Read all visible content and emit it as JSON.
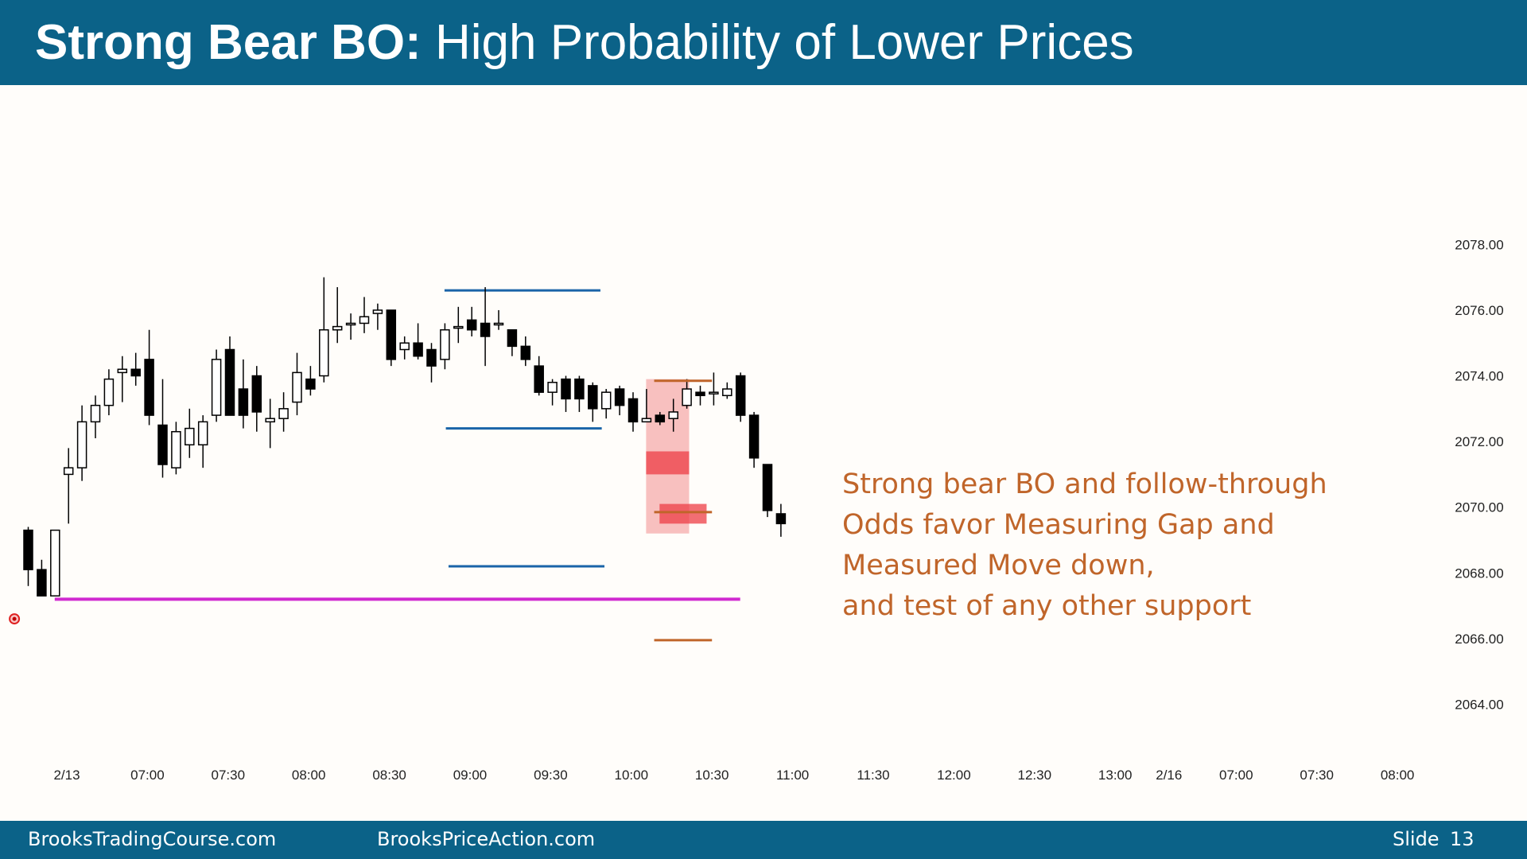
{
  "header": {
    "title_bold": "Strong Bear BO:",
    "title_rest": "High Probability of Lower Prices"
  },
  "footer": {
    "site1": "BrooksTradingCourse.com",
    "site2": "BrooksPriceAction.com",
    "slide_label": "Slide",
    "slide_number": "13"
  },
  "annotation": {
    "lines": [
      "Strong bear BO and follow-through",
      "Odds favor Measuring Gap and",
      "Measured Move down,",
      "and test of any other support"
    ],
    "color": "#c0652a"
  },
  "chart_data": {
    "type": "candlestick",
    "title": "",
    "xlabel": "",
    "ylabel": "",
    "ylim": [
      2062.8,
      2080.6
    ],
    "y_ticks": [
      "2078.00",
      "2076.00",
      "2074.00",
      "2072.00",
      "2070.00",
      "2068.00",
      "2066.00",
      "2064.00"
    ],
    "x_ticks": [
      {
        "label": "2/13",
        "slot": 0
      },
      {
        "label": "07:00",
        "slot": 6
      },
      {
        "label": "07:30",
        "slot": 12
      },
      {
        "label": "08:00",
        "slot": 18
      },
      {
        "label": "08:30",
        "slot": 24
      },
      {
        "label": "09:00",
        "slot": 30
      },
      {
        "label": "09:30",
        "slot": 36
      },
      {
        "label": "10:00",
        "slot": 42
      },
      {
        "label": "10:30",
        "slot": 48
      },
      {
        "label": "11:00",
        "slot": 54
      },
      {
        "label": "11:30",
        "slot": 60
      },
      {
        "label": "12:00",
        "slot": 66
      },
      {
        "label": "12:30",
        "slot": 72
      },
      {
        "label": "13:00",
        "slot": 78
      },
      {
        "label": "2/16",
        "slot": 82
      },
      {
        "label": "07:00",
        "slot": 87
      },
      {
        "label": "07:30",
        "slot": 93
      },
      {
        "label": "08:00",
        "slot": 99
      }
    ],
    "candles": [
      [
        2069.3,
        2069.4,
        2067.6,
        2068.1
      ],
      [
        2068.1,
        2068.4,
        2067.3,
        2067.3
      ],
      [
        2067.3,
        2069.3,
        2067.3,
        2069.3
      ],
      [
        2071.0,
        2071.8,
        2069.5,
        2071.2
      ],
      [
        2071.2,
        2073.1,
        2070.8,
        2072.6
      ],
      [
        2072.6,
        2073.4,
        2072.1,
        2073.1
      ],
      [
        2073.1,
        2074.2,
        2072.8,
        2073.9
      ],
      [
        2074.1,
        2074.6,
        2073.2,
        2074.2
      ],
      [
        2074.2,
        2074.7,
        2073.7,
        2074.0
      ],
      [
        2074.5,
        2075.4,
        2072.5,
        2072.8
      ],
      [
        2072.5,
        2073.9,
        2070.9,
        2071.3
      ],
      [
        2071.2,
        2072.6,
        2071.0,
        2072.3
      ],
      [
        2071.9,
        2073.0,
        2071.5,
        2072.4
      ],
      [
        2071.9,
        2072.8,
        2071.2,
        2072.6
      ],
      [
        2072.8,
        2074.8,
        2072.6,
        2074.5
      ],
      [
        2074.8,
        2075.2,
        2072.8,
        2072.8
      ],
      [
        2073.6,
        2074.5,
        2072.4,
        2072.8
      ],
      [
        2074.0,
        2074.3,
        2072.3,
        2072.9
      ],
      [
        2072.6,
        2073.3,
        2071.8,
        2072.7
      ],
      [
        2072.7,
        2073.5,
        2072.3,
        2073.0
      ],
      [
        2073.2,
        2074.7,
        2072.8,
        2074.1
      ],
      [
        2073.9,
        2074.3,
        2073.4,
        2073.6
      ],
      [
        2074.0,
        2077.0,
        2073.8,
        2075.4
      ],
      [
        2075.4,
        2076.7,
        2075.0,
        2075.5
      ],
      [
        2075.6,
        2075.9,
        2075.1,
        2075.6
      ],
      [
        2075.6,
        2076.4,
        2075.3,
        2075.8
      ],
      [
        2075.9,
        2076.2,
        2075.4,
        2076.0
      ],
      [
        2076.0,
        2076.0,
        2074.3,
        2074.5
      ],
      [
        2074.8,
        2075.2,
        2074.5,
        2075.0
      ],
      [
        2075.0,
        2075.6,
        2074.5,
        2074.6
      ],
      [
        2074.8,
        2075.0,
        2073.8,
        2074.3
      ],
      [
        2074.5,
        2075.6,
        2074.2,
        2075.4
      ],
      [
        2075.5,
        2076.1,
        2075.0,
        2075.5
      ],
      [
        2075.7,
        2076.1,
        2075.2,
        2075.4
      ],
      [
        2075.6,
        2076.7,
        2074.3,
        2075.2
      ],
      [
        2075.6,
        2076.0,
        2075.4,
        2075.6
      ],
      [
        2075.4,
        2075.4,
        2074.6,
        2074.9
      ],
      [
        2074.9,
        2075.2,
        2074.3,
        2074.5
      ],
      [
        2074.3,
        2074.6,
        2073.4,
        2073.5
      ],
      [
        2073.5,
        2073.9,
        2073.1,
        2073.8
      ],
      [
        2073.9,
        2074.0,
        2072.9,
        2073.3
      ],
      [
        2073.9,
        2074.0,
        2072.9,
        2073.3
      ],
      [
        2073.7,
        2073.8,
        2072.6,
        2073.0
      ],
      [
        2073.0,
        2073.6,
        2072.7,
        2073.5
      ],
      [
        2073.6,
        2073.7,
        2072.8,
        2073.1
      ],
      [
        2073.3,
        2073.5,
        2072.3,
        2072.6
      ],
      [
        2072.6,
        2073.6,
        2072.6,
        2072.7
      ],
      [
        2072.8,
        2072.9,
        2072.5,
        2072.6
      ],
      [
        2072.7,
        2073.3,
        2072.3,
        2072.9
      ],
      [
        2073.1,
        2073.9,
        2073.0,
        2073.6
      ],
      [
        2073.5,
        2073.7,
        2073.1,
        2073.4
      ],
      [
        2073.5,
        2074.1,
        2073.1,
        2073.5
      ],
      [
        2073.4,
        2073.8,
        2073.3,
        2073.6
      ],
      [
        2074.0,
        2074.1,
        2072.6,
        2072.8
      ],
      [
        2072.8,
        2072.9,
        2071.2,
        2071.5
      ],
      [
        2071.3,
        2071.3,
        2069.7,
        2069.9
      ],
      [
        2069.8,
        2070.1,
        2069.1,
        2069.5
      ]
    ],
    "blue_lines": [
      {
        "price": 2076.6,
        "from_slot": 31.0,
        "to_slot": 42.6
      },
      {
        "price": 2072.4,
        "from_slot": 31.1,
        "to_slot": 42.7
      },
      {
        "price": 2068.2,
        "from_slot": 31.3,
        "to_slot": 42.9
      }
    ],
    "magenta_line": {
      "price": 2067.2,
      "from_slot": 2.0,
      "to_slot": 53.0,
      "color": "#d02ad0"
    },
    "orange_lines": [
      {
        "price": 2073.85,
        "from_slot": 46.6,
        "to_slot": 50.9
      },
      {
        "price": 2069.85,
        "from_slot": 46.6,
        "to_slot": 50.9
      },
      {
        "price": 2065.95,
        "from_slot": 46.6,
        "to_slot": 50.9
      }
    ],
    "highlight_zone": {
      "top": 2073.9,
      "bottom": 2069.2,
      "from_slot": 46.0,
      "to_slot": 49.2,
      "color": "#f4a0a0"
    },
    "gap_boxes": [
      {
        "top": 2071.7,
        "bottom": 2071.0,
        "from_slot": 46.0,
        "to_slot": 49.2
      },
      {
        "top": 2070.1,
        "bottom": 2069.5,
        "from_slot": 47.0,
        "to_slot": 50.5
      }
    ],
    "marker_slot": -1.0,
    "marker_price": 2066.6,
    "colors": {
      "bull_fill": "#ffffff",
      "bear_fill": "#000000",
      "wick": "#000000",
      "blue": "#1a64a8",
      "orange": "#c0652a",
      "gap_red": "#ee3d46"
    }
  }
}
